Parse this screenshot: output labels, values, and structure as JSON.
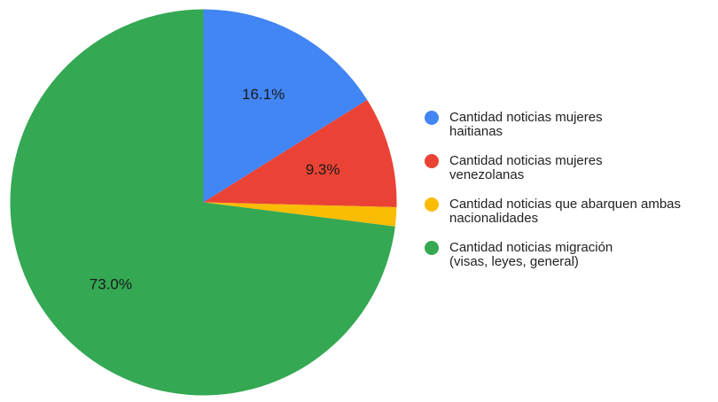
{
  "chart_data": {
    "type": "pie",
    "title": "",
    "start_angle_deg": 0,
    "direction": "clockwise",
    "legend_position": "right",
    "slices": [
      {
        "name": "Cantidad noticias mujeres haitianas",
        "legend_lines": [
          "Cantidad noticias mujeres",
          "haitianas"
        ],
        "value": 16.1,
        "label": "16.1%",
        "color": "#4285f4"
      },
      {
        "name": "Cantidad noticias mujeres venezolanas",
        "legend_lines": [
          "Cantidad noticias mujeres",
          "venezolanas"
        ],
        "value": 9.3,
        "label": "9.3%",
        "color": "#ea4335"
      },
      {
        "name": "Cantidad noticias que abarquen ambas nacionalidades",
        "legend_lines": [
          "Cantidad noticias que abarquen ambas",
          "nacionalidades"
        ],
        "value": 1.6,
        "label": "",
        "color": "#fbbc04"
      },
      {
        "name": "Cantidad noticias migración (visas, leyes, general)",
        "legend_lines": [
          "Cantidad noticias migración",
          "(visas, leyes, general)"
        ],
        "value": 73.0,
        "label": "73.0%",
        "color": "#34a853"
      }
    ]
  }
}
